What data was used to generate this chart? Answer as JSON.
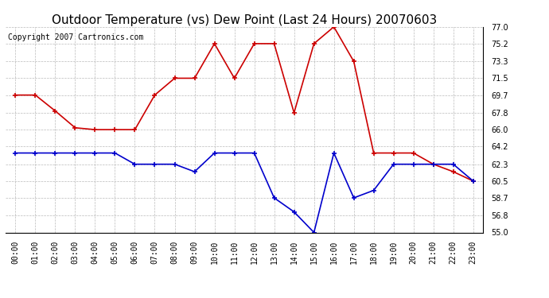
{
  "title": "Outdoor Temperature (vs) Dew Point (Last 24 Hours) 20070603",
  "copyright": "Copyright 2007 Cartronics.com",
  "hours": [
    "00:00",
    "01:00",
    "02:00",
    "03:00",
    "04:00",
    "05:00",
    "06:00",
    "07:00",
    "08:00",
    "09:00",
    "10:00",
    "11:00",
    "12:00",
    "13:00",
    "14:00",
    "15:00",
    "16:00",
    "17:00",
    "18:00",
    "19:00",
    "20:00",
    "21:00",
    "22:00",
    "23:00"
  ],
  "temp": [
    69.7,
    69.7,
    68.0,
    66.2,
    66.0,
    66.0,
    66.0,
    69.7,
    71.5,
    71.5,
    75.2,
    71.5,
    75.2,
    75.2,
    67.8,
    75.2,
    77.0,
    73.3,
    63.5,
    63.5,
    63.5,
    62.3,
    61.5,
    60.5
  ],
  "dew": [
    63.5,
    63.5,
    63.5,
    63.5,
    63.5,
    63.5,
    62.3,
    62.3,
    62.3,
    61.5,
    63.5,
    63.5,
    63.5,
    58.7,
    57.2,
    55.0,
    63.5,
    58.7,
    59.5,
    62.3,
    62.3,
    62.3,
    62.3,
    60.5
  ],
  "temp_color": "#cc0000",
  "dew_color": "#0000cc",
  "bg_color": "#ffffff",
  "plot_bg": "#ffffff",
  "grid_color": "#bbbbbb",
  "ylim": [
    55.0,
    77.0
  ],
  "yticks": [
    55.0,
    56.8,
    58.7,
    60.5,
    62.3,
    64.2,
    66.0,
    67.8,
    69.7,
    71.5,
    73.3,
    75.2,
    77.0
  ],
  "title_fontsize": 11,
  "copyright_fontsize": 7,
  "tick_fontsize": 7
}
